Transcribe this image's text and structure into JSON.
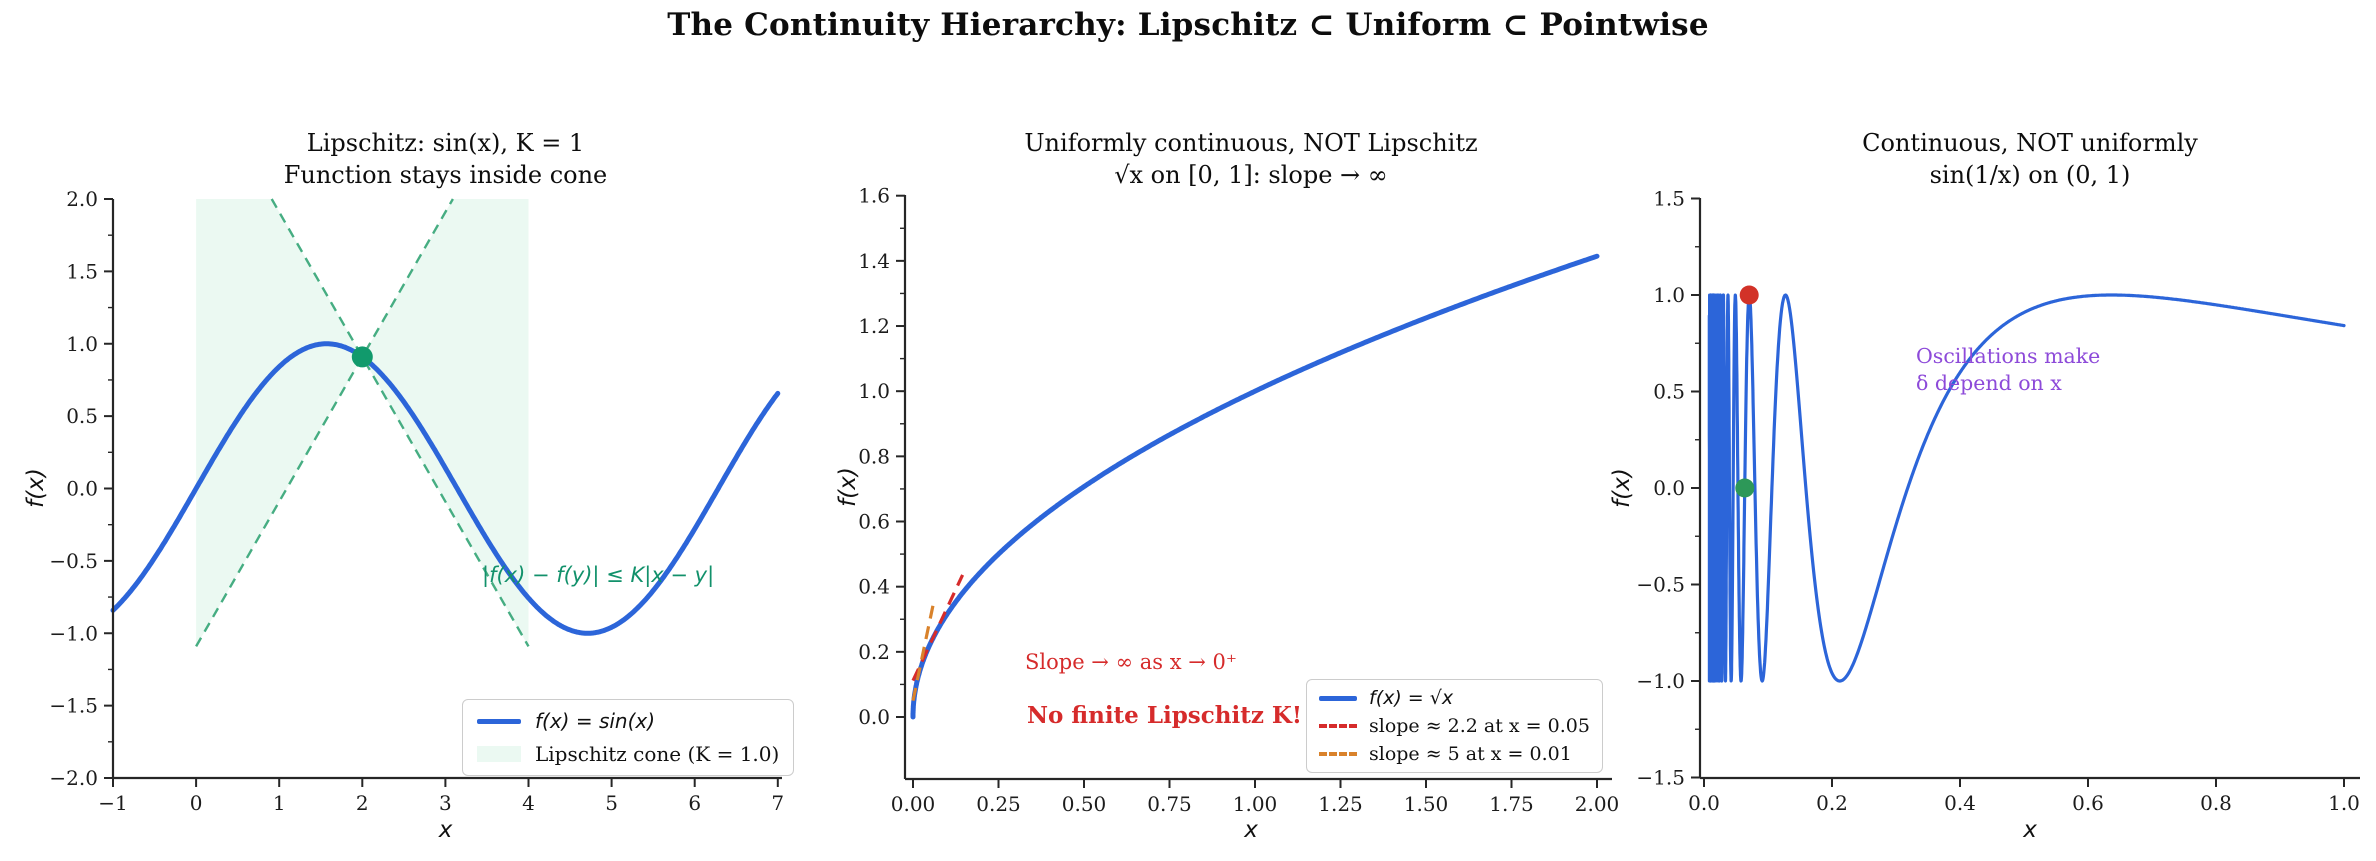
{
  "main_title": "The Continuity Hierarchy: Lipschitz ⊂ Uniform ⊂ Pointwise",
  "chart_data": [
    {
      "id": "lipschitz-sin",
      "type": "line",
      "title_line1": "Lipschitz: sin(x), K = 1",
      "title_line2": "Function stays inside cone",
      "xlabel": "x",
      "ylabel": "f(x)",
      "function": "sin(x)",
      "x_range": [
        -1,
        7
      ],
      "xlim": [
        -1,
        7
      ],
      "ylim": [
        -2,
        2
      ],
      "xtick_vals": [
        -1,
        0,
        1,
        2,
        3,
        4,
        5,
        6,
        7
      ],
      "xtick_labels": [
        "−1",
        "0",
        "1",
        "2",
        "3",
        "4",
        "5",
        "6",
        "7"
      ],
      "ytick_vals": [
        -2.0,
        -1.5,
        -1.0,
        -0.5,
        0.0,
        0.5,
        1.0,
        1.5,
        2.0
      ],
      "ytick_labels": [
        "−2.0",
        "−1.5",
        "−1.0",
        "−0.5",
        "0.0",
        "0.5",
        "1.0",
        "1.5",
        "2.0"
      ],
      "cone": {
        "center": [
          2,
          0.9093
        ],
        "K": 1.0,
        "x_extent": [
          0,
          4
        ]
      },
      "marked_point": {
        "xy": [
          2,
          0.9093
        ]
      },
      "annotation": "|f(x) − f(y)| ≤ K|x − y|",
      "legend": [
        {
          "label": "f(x) = sin(x)",
          "swatch": "line"
        },
        {
          "label": "Lipschitz cone (K = 1.0)",
          "swatch": "patch"
        }
      ],
      "colors": {
        "curve": "#2c65d9",
        "cone_fill": "#ebf9f2",
        "cone_edge": "#46ad82",
        "point": "#119a6c",
        "annotation": "#12916b"
      }
    },
    {
      "id": "sqrt",
      "type": "line",
      "title_line1": "Uniformly continuous, NOT Lipschitz",
      "title_line2": "√x on [0, 1]: slope → ∞",
      "xlabel": "x",
      "ylabel": "f(x)",
      "function": "sqrt(x)",
      "x_range": [
        0,
        2
      ],
      "xlim": [
        0,
        2
      ],
      "ylim": [
        0,
        1.6
      ],
      "xtick_vals": [
        0,
        0.25,
        0.5,
        0.75,
        1.0,
        1.25,
        1.5,
        1.75,
        2.0
      ],
      "xtick_labels": [
        "0.00",
        "0.25",
        "0.50",
        "0.75",
        "1.00",
        "1.25",
        "1.50",
        "1.75",
        "2.00"
      ],
      "ytick_vals": [
        0.0,
        0.2,
        0.4,
        0.6,
        0.8,
        1.0,
        1.2,
        1.4,
        1.6
      ],
      "ytick_labels": [
        "0.0",
        "0.2",
        "0.4",
        "0.6",
        "0.8",
        "1.0",
        "1.2",
        "1.4",
        "1.6"
      ],
      "tangents": [
        {
          "at": 0.05,
          "slope": 2.236,
          "x_span": [
            0,
            0.145
          ],
          "color": "#d62b2b"
        },
        {
          "at": 0.01,
          "slope": 5,
          "x_span": [
            0,
            0.06
          ],
          "color": "#d9822b"
        }
      ],
      "annotation_slope": "Slope → ∞ as x → 0⁺",
      "annotation_nofinite": "No finite Lipschitz K!",
      "legend": [
        {
          "label": "f(x) = √x",
          "swatch": "line"
        },
        {
          "label": "slope ≈ 2.2 at x = 0.05",
          "swatch": "dash-red"
        },
        {
          "label": "slope ≈ 5 at x = 0.01",
          "swatch": "dash-orange"
        }
      ],
      "colors": {
        "curve": "#2c65d9",
        "annotation": "#d62b2b"
      }
    },
    {
      "id": "sin-1-over-x",
      "type": "line",
      "title_line1": "Continuous, NOT uniformly",
      "title_line2": "sin(1/x) on (0, 1)",
      "xlabel": "x",
      "ylabel": "f(x)",
      "function": "sin(1/x)",
      "x_range": [
        0.0083,
        1
      ],
      "xlim": [
        0,
        1
      ],
      "ylim": [
        -1.5,
        1.5
      ],
      "xtick_vals": [
        0.0,
        0.2,
        0.4,
        0.6,
        0.8,
        1.0
      ],
      "xtick_labels": [
        "0.0",
        "0.2",
        "0.4",
        "0.6",
        "0.8",
        "1.0"
      ],
      "ytick_vals": [
        -1.5,
        -1.0,
        -0.5,
        0.0,
        0.5,
        1.0,
        1.5
      ],
      "ytick_labels": [
        "−1.5",
        "−1.0",
        "−0.5",
        "0.0",
        "0.5",
        "1.0",
        "1.5"
      ],
      "points": [
        {
          "xy": [
            0.0707,
            1.0
          ],
          "color": "#d23228"
        },
        {
          "xy": [
            0.0637,
            0.0
          ],
          "color": "#2d9858"
        }
      ],
      "annotation_line1": "Oscillations make",
      "annotation_line2": "δ depend on x",
      "colors": {
        "curve": "#2c65d9",
        "annotation": "#8d4ad9"
      }
    }
  ]
}
